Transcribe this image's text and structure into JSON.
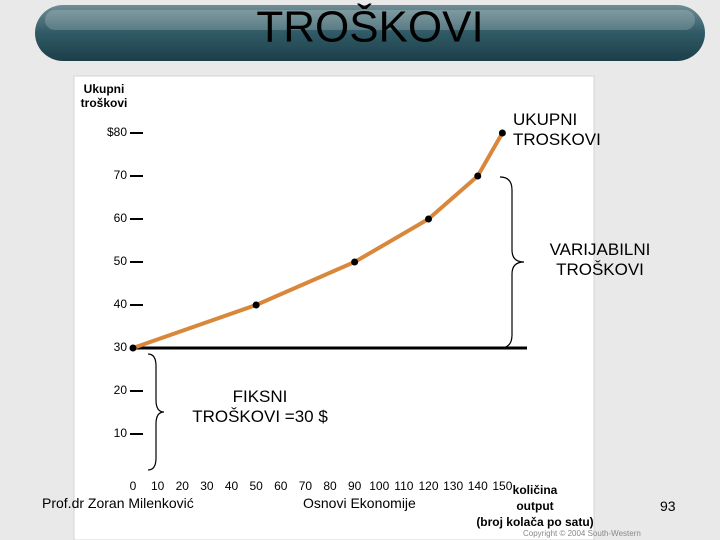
{
  "title": "TROŠKOVI",
  "chart_data": {
    "type": "line",
    "y_label": "Ukupni\ntroškovi",
    "x_label": "količina\noutput\n(broj kolača po satu)",
    "xlim": [
      0,
      160
    ],
    "xticks": [
      0,
      10,
      20,
      30,
      40,
      50,
      60,
      70,
      80,
      90,
      100,
      110,
      120,
      130,
      140,
      150
    ],
    "ylim": [
      0,
      90
    ],
    "yticks": [
      10,
      20,
      30,
      40,
      50,
      60,
      70,
      {
        "value": 80,
        "label": "$80"
      }
    ],
    "series": [
      {
        "name": "UKUPNI\nTROSKOVI",
        "color": "#d9873b",
        "x": [
          0,
          50,
          90,
          120,
          140,
          150
        ],
        "values": [
          30,
          40,
          50,
          60,
          70,
          80
        ]
      },
      {
        "name": "FIKSNI\nTROŠKOVI =30 $",
        "color": "#000000",
        "x": [
          0,
          160
        ],
        "values": [
          30,
          30
        ]
      }
    ],
    "annotations": [
      "VARIJABILNI\nTROŠKOVI"
    ]
  },
  "footer": {
    "author": "Prof.dr Zoran Milenković",
    "course": "Osnovi Ekonomije",
    "page": "93",
    "copyright": "Copyright © 2004 South-Western"
  }
}
